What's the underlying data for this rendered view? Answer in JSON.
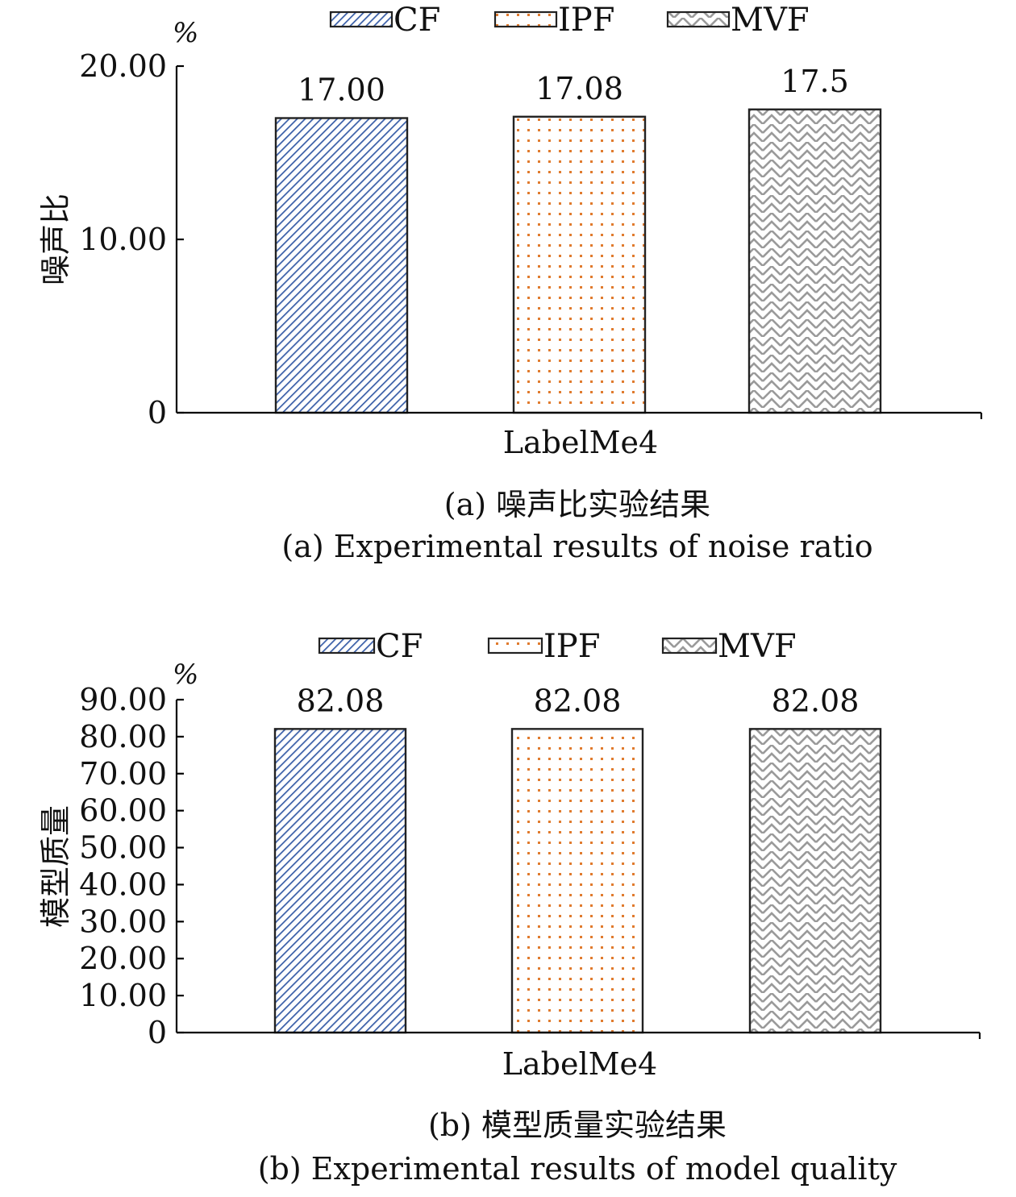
{
  "chart_data": [
    {
      "type": "bar",
      "categories": [
        "LabelMe4"
      ],
      "series": [
        {
          "name": "CF",
          "values": [
            17.0
          ],
          "labels": [
            "17.00"
          ],
          "color": "#3a5fa8",
          "pattern": "diagonal"
        },
        {
          "name": "IPF",
          "values": [
            17.08
          ],
          "labels": [
            "17.08"
          ],
          "color": "#e07b2e",
          "pattern": "dots"
        },
        {
          "name": "MVF",
          "values": [
            17.5
          ],
          "labels": [
            "17.50"
          ],
          "color": "#999999",
          "pattern": "zigzag"
        }
      ],
      "unit": "%",
      "ylabel": "噪声比",
      "xlabel": "LabelMe4",
      "yticks": [
        "0",
        "10.00",
        "20.00"
      ],
      "ytick_values": [
        0,
        10,
        20
      ],
      "ylim": [
        0,
        20
      ],
      "legend": "top-center",
      "grid": false,
      "caption_zh": "(a) 噪声比实验结果",
      "caption_en": "(a) Experimental results of noise ratio"
    },
    {
      "type": "bar",
      "categories": [
        "LabelMe4"
      ],
      "series": [
        {
          "name": "CF",
          "values": [
            82.08
          ],
          "labels": [
            "82.08"
          ],
          "color": "#3a5fa8",
          "pattern": "diagonal"
        },
        {
          "name": "IPF",
          "values": [
            82.08
          ],
          "labels": [
            "82.08"
          ],
          "color": "#e07b2e",
          "pattern": "dots"
        },
        {
          "name": "MVF",
          "values": [
            82.08
          ],
          "labels": [
            "82.08"
          ],
          "color": "#999999",
          "pattern": "zigzag"
        }
      ],
      "unit": "%",
      "ylabel": "模型质量",
      "xlabel": "LabelMe4",
      "yticks": [
        "0",
        "10.00",
        "20.00",
        "30.00",
        "40.00",
        "50.00",
        "60.00",
        "70.00",
        "80.00",
        "90.00"
      ],
      "ytick_values": [
        0,
        10,
        20,
        30,
        40,
        50,
        60,
        70,
        80,
        90
      ],
      "ylim": [
        0,
        90
      ],
      "legend": "top-center",
      "grid": false,
      "caption_zh": "(b) 模型质量实验结果",
      "caption_en": "(b) Experimental results of model quality"
    }
  ]
}
